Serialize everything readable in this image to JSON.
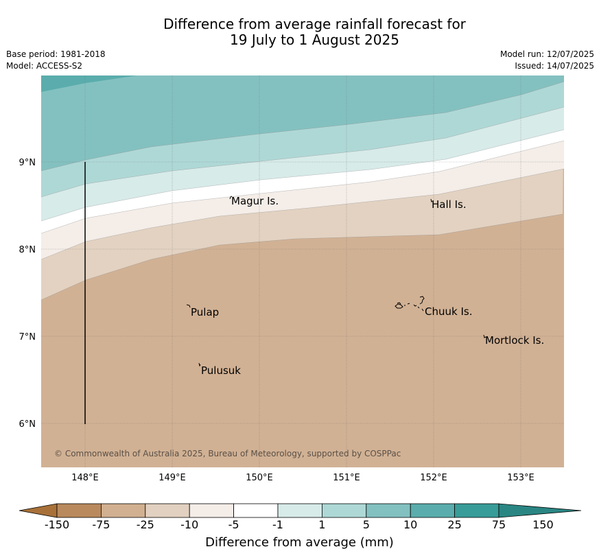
{
  "title": {
    "line1": "Difference from average rainfall forecast for",
    "line2": "19 July to 1 August 2025"
  },
  "meta_left": {
    "base_period": "Base period: 1981-2018",
    "model": "Model: ACCESS-S2"
  },
  "meta_right": {
    "model_run": "Model run: 12/07/2025",
    "issued": "Issued: 14/07/2025"
  },
  "map": {
    "lon_labels": [
      "148°E",
      "149°E",
      "150°E",
      "151°E",
      "152°E",
      "153°E"
    ],
    "lat_labels": [
      "9°N",
      "8°N",
      "7°N",
      "6°N"
    ],
    "places": [
      {
        "name": "Magur Is."
      },
      {
        "name": "Hall Is."
      },
      {
        "name": "Pulap"
      },
      {
        "name": "Chuuk Is."
      },
      {
        "name": "Mortlock Is."
      },
      {
        "name": "Pulusuk"
      }
    ],
    "copyright": "© Commonwealth of Australia 2025, Bureau of Meteorology, supported by COSPPac"
  },
  "colorbar": {
    "title": "Difference from average (mm)",
    "tick_labels": [
      "-150",
      "-75",
      "-25",
      "-10",
      "-5",
      "-1",
      "1",
      "5",
      "10",
      "25",
      "75",
      "150"
    ],
    "colors": [
      "#a87139",
      "#b98a5d",
      "#d1b091",
      "#e2d1c0",
      "#f4ede8",
      "#ffffff",
      "#d7ebe9",
      "#aed8d6",
      "#83c1c0",
      "#5aadac",
      "#389c98",
      "#2a8683"
    ]
  }
}
